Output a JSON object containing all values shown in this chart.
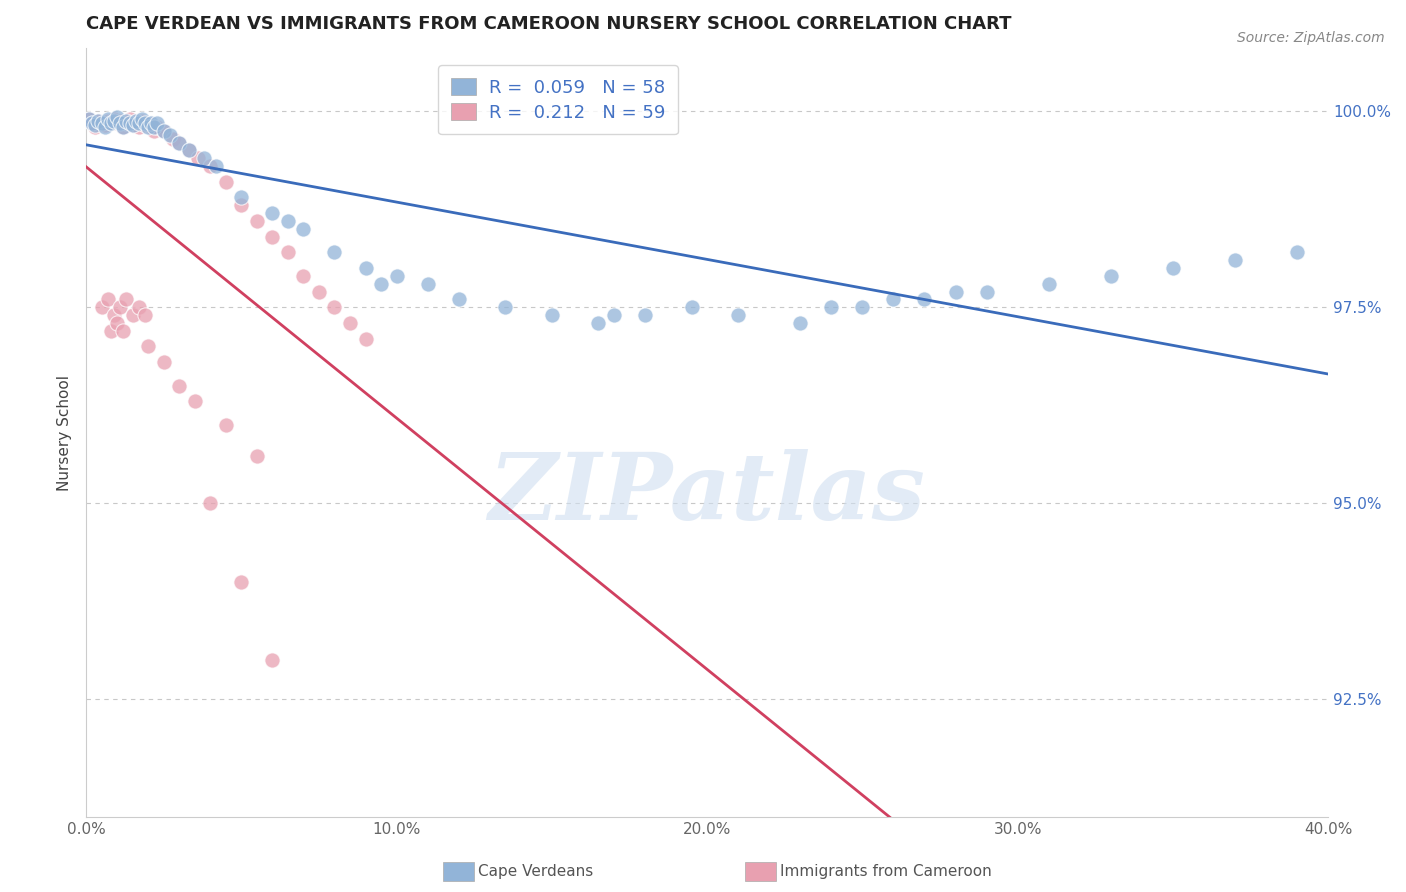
{
  "title": "CAPE VERDEAN VS IMMIGRANTS FROM CAMEROON NURSERY SCHOOL CORRELATION CHART",
  "source": "Source: ZipAtlas.com",
  "ylabel": "Nursery School",
  "xlim": [
    0.0,
    0.4
  ],
  "ylim": [
    0.91,
    1.008
  ],
  "xtick_labels": [
    "0.0%",
    "10.0%",
    "20.0%",
    "30.0%",
    "40.0%"
  ],
  "xtick_vals": [
    0.0,
    0.1,
    0.2,
    0.3,
    0.4
  ],
  "ytick_labels": [
    "92.5%",
    "95.0%",
    "97.5%",
    "100.0%"
  ],
  "ytick_vals": [
    0.925,
    0.95,
    0.975,
    1.0
  ],
  "legend_R1": "R = ",
  "legend_V1": "0.059",
  "legend_N1": "  N = ",
  "legend_NV1": "58",
  "legend_R2": "R = ",
  "legend_V2": "0.212",
  "legend_N2": "  N = ",
  "legend_NV2": "59",
  "blue_color": "#92b4d8",
  "pink_color": "#e8a0b0",
  "trend_blue": "#3a6bba",
  "trend_pink": "#d04060",
  "background": "#ffffff",
  "grid_color": "#c8c8c8",
  "watermark_text": "ZIPatlas",
  "series1_label": "Cape Verdeans",
  "series2_label": "Immigrants from Cameroon",
  "blue_x": [
    0.001,
    0.002,
    0.003,
    0.004,
    0.005,
    0.006,
    0.007,
    0.008,
    0.009,
    0.01,
    0.011,
    0.012,
    0.013,
    0.014,
    0.015,
    0.016,
    0.017,
    0.018,
    0.019,
    0.02,
    0.021,
    0.022,
    0.023,
    0.025,
    0.027,
    0.03,
    0.033,
    0.038,
    0.042,
    0.05,
    0.06,
    0.065,
    0.07,
    0.08,
    0.09,
    0.095,
    0.1,
    0.11,
    0.12,
    0.135,
    0.15,
    0.165,
    0.18,
    0.195,
    0.21,
    0.23,
    0.25,
    0.27,
    0.29,
    0.31,
    0.33,
    0.35,
    0.37,
    0.39,
    0.24,
    0.26,
    0.28,
    0.17
  ],
  "blue_y": [
    0.999,
    0.9985,
    0.9982,
    0.9988,
    0.9985,
    0.998,
    0.999,
    0.9985,
    0.9988,
    0.9992,
    0.9985,
    0.998,
    0.9988,
    0.9985,
    0.9982,
    0.9988,
    0.9985,
    0.999,
    0.9985,
    0.998,
    0.9985,
    0.998,
    0.9985,
    0.9975,
    0.997,
    0.996,
    0.995,
    0.994,
    0.993,
    0.989,
    0.987,
    0.986,
    0.985,
    0.982,
    0.98,
    0.978,
    0.979,
    0.978,
    0.976,
    0.975,
    0.974,
    0.973,
    0.974,
    0.975,
    0.974,
    0.973,
    0.975,
    0.976,
    0.977,
    0.978,
    0.979,
    0.98,
    0.981,
    0.982,
    0.975,
    0.976,
    0.977,
    0.974
  ],
  "pink_x": [
    0.001,
    0.002,
    0.003,
    0.004,
    0.005,
    0.006,
    0.007,
    0.008,
    0.009,
    0.01,
    0.011,
    0.012,
    0.013,
    0.014,
    0.015,
    0.016,
    0.017,
    0.018,
    0.019,
    0.02,
    0.021,
    0.022,
    0.023,
    0.025,
    0.028,
    0.03,
    0.033,
    0.036,
    0.04,
    0.045,
    0.05,
    0.055,
    0.06,
    0.065,
    0.07,
    0.075,
    0.08,
    0.085,
    0.09,
    0.005,
    0.007,
    0.009,
    0.011,
    0.013,
    0.015,
    0.017,
    0.019,
    0.008,
    0.01,
    0.012,
    0.04,
    0.05,
    0.06,
    0.02,
    0.025,
    0.03,
    0.035,
    0.045,
    0.055
  ],
  "pink_y": [
    0.999,
    0.9985,
    0.998,
    0.9988,
    0.9985,
    0.9982,
    0.9988,
    0.9985,
    0.999,
    0.9985,
    0.9988,
    0.998,
    0.9985,
    0.999,
    0.9982,
    0.9985,
    0.998,
    0.9988,
    0.9982,
    0.9985,
    0.998,
    0.9975,
    0.998,
    0.9975,
    0.9965,
    0.996,
    0.995,
    0.994,
    0.993,
    0.991,
    0.988,
    0.986,
    0.984,
    0.982,
    0.979,
    0.977,
    0.975,
    0.973,
    0.971,
    0.975,
    0.976,
    0.974,
    0.975,
    0.976,
    0.974,
    0.975,
    0.974,
    0.972,
    0.973,
    0.972,
    0.95,
    0.94,
    0.93,
    0.97,
    0.968,
    0.965,
    0.963,
    0.96,
    0.956
  ]
}
